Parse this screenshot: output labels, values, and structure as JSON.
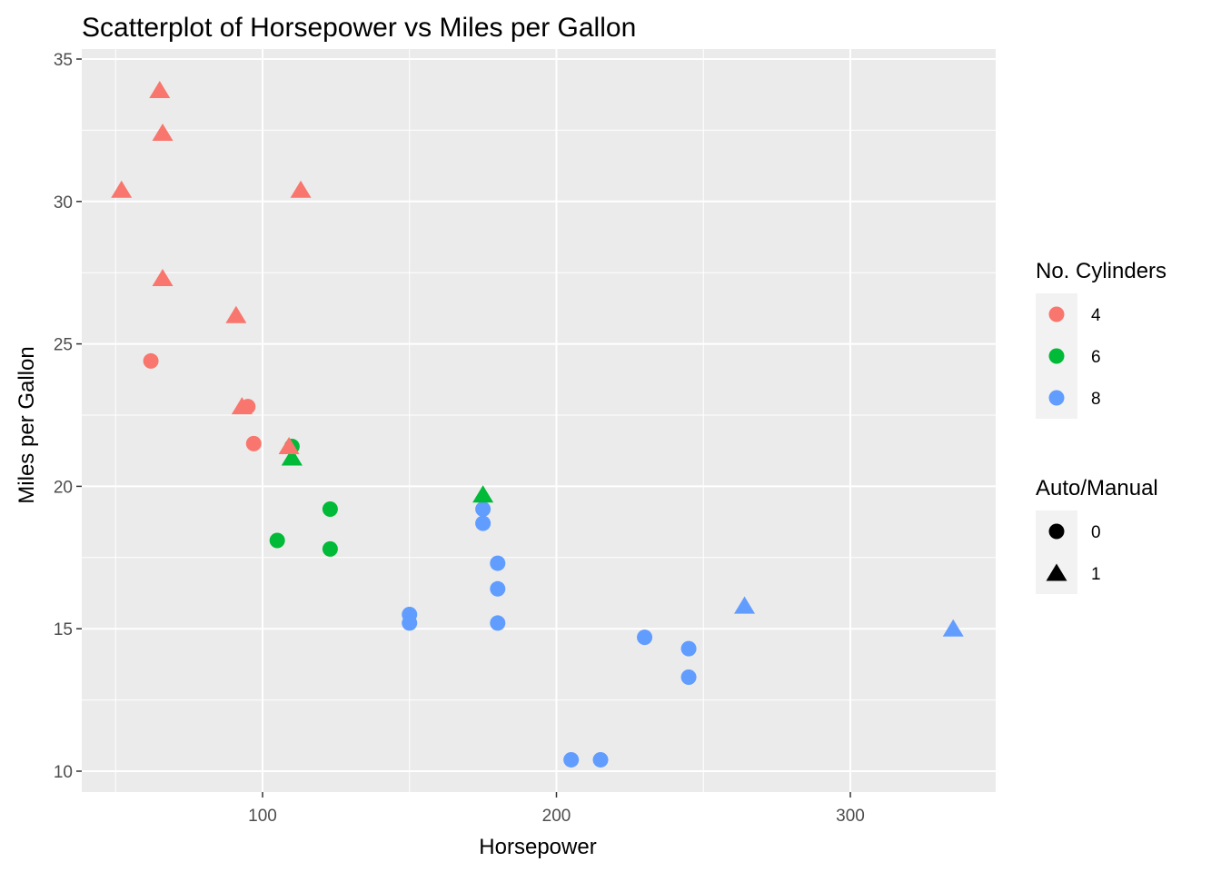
{
  "chart_data": {
    "type": "scatter",
    "title": "Scatterplot of Horsepower vs Miles per Gallon",
    "xlabel": "Horsepower",
    "ylabel": "Miles per Gallon",
    "xlim": [
      40,
      350
    ],
    "ylim": [
      9.3,
      35
    ],
    "x_ticks": [
      100,
      200,
      300
    ],
    "y_ticks": [
      10,
      15,
      20,
      25,
      30,
      35
    ],
    "grid": true,
    "legend_position": "right",
    "colors": {
      "4": "#F8766D",
      "6": "#00BA38",
      "8": "#619CFF",
      "legend_key_bg": "#F2F2F2",
      "panel_bg": "#EBEBEB"
    },
    "legends": [
      {
        "title": "No. Cylinders",
        "kind": "color",
        "entries": [
          {
            "label": "4",
            "color": "#F8766D",
            "shape": "circle"
          },
          {
            "label": "6",
            "color": "#00BA38",
            "shape": "circle"
          },
          {
            "label": "8",
            "color": "#619CFF",
            "shape": "circle"
          }
        ]
      },
      {
        "title": "Auto/Manual",
        "kind": "shape",
        "entries": [
          {
            "label": "0",
            "color": "#000000",
            "shape": "circle"
          },
          {
            "label": "1",
            "color": "#000000",
            "shape": "triangle"
          }
        ]
      }
    ],
    "points": [
      {
        "x": 110,
        "y": 21.0,
        "cyl": "6",
        "am": "1"
      },
      {
        "x": 110,
        "y": 21.0,
        "cyl": "6",
        "am": "1"
      },
      {
        "x": 93,
        "y": 22.8,
        "cyl": "4",
        "am": "1"
      },
      {
        "x": 110,
        "y": 21.4,
        "cyl": "6",
        "am": "0"
      },
      {
        "x": 175,
        "y": 18.7,
        "cyl": "8",
        "am": "0"
      },
      {
        "x": 105,
        "y": 18.1,
        "cyl": "6",
        "am": "0"
      },
      {
        "x": 245,
        "y": 14.3,
        "cyl": "8",
        "am": "0"
      },
      {
        "x": 62,
        "y": 24.4,
        "cyl": "4",
        "am": "0"
      },
      {
        "x": 95,
        "y": 22.8,
        "cyl": "4",
        "am": "0"
      },
      {
        "x": 123,
        "y": 19.2,
        "cyl": "6",
        "am": "0"
      },
      {
        "x": 123,
        "y": 17.8,
        "cyl": "6",
        "am": "0"
      },
      {
        "x": 180,
        "y": 16.4,
        "cyl": "8",
        "am": "0"
      },
      {
        "x": 180,
        "y": 17.3,
        "cyl": "8",
        "am": "0"
      },
      {
        "x": 180,
        "y": 15.2,
        "cyl": "8",
        "am": "0"
      },
      {
        "x": 205,
        "y": 10.4,
        "cyl": "8",
        "am": "0"
      },
      {
        "x": 215,
        "y": 10.4,
        "cyl": "8",
        "am": "0"
      },
      {
        "x": 230,
        "y": 14.7,
        "cyl": "8",
        "am": "0"
      },
      {
        "x": 66,
        "y": 32.4,
        "cyl": "4",
        "am": "1"
      },
      {
        "x": 52,
        "y": 30.4,
        "cyl": "4",
        "am": "1"
      },
      {
        "x": 65,
        "y": 33.9,
        "cyl": "4",
        "am": "1"
      },
      {
        "x": 97,
        "y": 21.5,
        "cyl": "4",
        "am": "0"
      },
      {
        "x": 150,
        "y": 15.5,
        "cyl": "8",
        "am": "0"
      },
      {
        "x": 150,
        "y": 15.2,
        "cyl": "8",
        "am": "0"
      },
      {
        "x": 245,
        "y": 13.3,
        "cyl": "8",
        "am": "0"
      },
      {
        "x": 175,
        "y": 19.2,
        "cyl": "8",
        "am": "0"
      },
      {
        "x": 66,
        "y": 27.3,
        "cyl": "4",
        "am": "1"
      },
      {
        "x": 91,
        "y": 26.0,
        "cyl": "4",
        "am": "1"
      },
      {
        "x": 113,
        "y": 30.4,
        "cyl": "4",
        "am": "1"
      },
      {
        "x": 264,
        "y": 15.8,
        "cyl": "8",
        "am": "1"
      },
      {
        "x": 175,
        "y": 19.7,
        "cyl": "6",
        "am": "1"
      },
      {
        "x": 335,
        "y": 15.0,
        "cyl": "8",
        "am": "1"
      },
      {
        "x": 109,
        "y": 21.4,
        "cyl": "4",
        "am": "1"
      }
    ]
  }
}
